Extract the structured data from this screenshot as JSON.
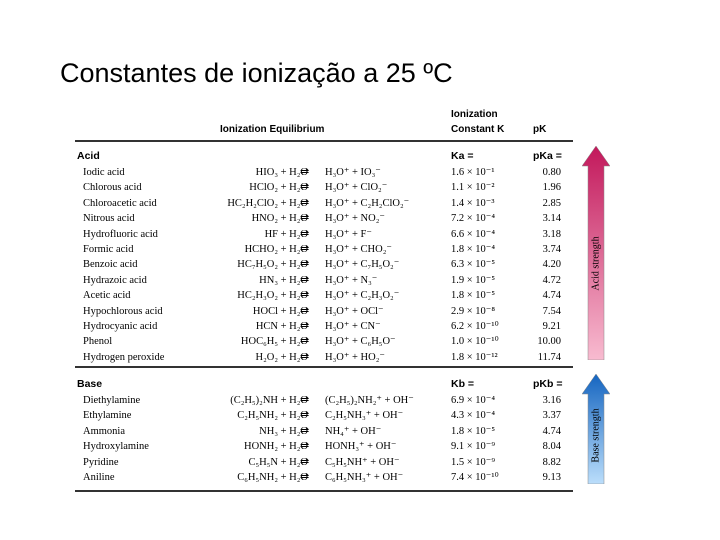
{
  "title": "Constantes de ionização a 25 ºC",
  "table": {
    "header": {
      "equilibrium": "Ionization Equilibrium",
      "constant_line1": "Ionization",
      "constant_line2": "Constant K",
      "pk": "pK"
    },
    "acid_section": {
      "label": "Acid",
      "k_label": "Ka =",
      "pk_label": "pKa =",
      "rows": [
        {
          "name": "Iodic acid",
          "reactants": "HIO₃ + H₂O",
          "products": "H₃O⁺ + IO₃⁻",
          "k": "1.6 × 10⁻¹",
          "pk": "0.80"
        },
        {
          "name": "Chlorous acid",
          "reactants": "HClO₂ + H₂O",
          "products": "H₃O⁺ + ClO₂⁻",
          "k": "1.1 × 10⁻²",
          "pk": "1.96"
        },
        {
          "name": "Chloroacetic acid",
          "reactants": "HC₂H₂ClO₂ + H₂O",
          "products": "H₃O⁺ + C₂H₂ClO₂⁻",
          "k": "1.4 × 10⁻³",
          "pk": "2.85"
        },
        {
          "name": "Nitrous acid",
          "reactants": "HNO₂ + H₂O",
          "products": "H₃O⁺ + NO₂⁻",
          "k": "7.2 × 10⁻⁴",
          "pk": "3.14"
        },
        {
          "name": "Hydrofluoric acid",
          "reactants": "HF + H₂O",
          "products": "H₃O⁺ + F⁻",
          "k": "6.6 × 10⁻⁴",
          "pk": "3.18"
        },
        {
          "name": "Formic acid",
          "reactants": "HCHO₂ + H₂O",
          "products": "H₃O⁺ + CHO₂⁻",
          "k": "1.8 × 10⁻⁴",
          "pk": "3.74"
        },
        {
          "name": "Benzoic acid",
          "reactants": "HC₇H₅O₂ + H₂O",
          "products": "H₃O⁺ + C₇H₅O₂⁻",
          "k": "6.3 × 10⁻⁵",
          "pk": "4.20"
        },
        {
          "name": "Hydrazoic acid",
          "reactants": "HN₃ + H₂O",
          "products": "H₃O⁺ + N₃⁻",
          "k": "1.9 × 10⁻⁵",
          "pk": "4.72"
        },
        {
          "name": "Acetic acid",
          "reactants": "HC₂H₃O₂ + H₂O",
          "products": "H₃O⁺ + C₂H₃O₂⁻",
          "k": "1.8 × 10⁻⁵",
          "pk": "4.74"
        },
        {
          "name": "Hypochlorous acid",
          "reactants": "HOCl + H₂O",
          "products": "H₃O⁺ + OCl⁻",
          "k": "2.9 × 10⁻⁸",
          "pk": "7.54"
        },
        {
          "name": "Hydrocyanic acid",
          "reactants": "HCN + H₂O",
          "products": "H₃O⁺ + CN⁻",
          "k": "6.2 × 10⁻¹⁰",
          "pk": "9.21"
        },
        {
          "name": "Phenol",
          "reactants": "HOC₆H₅ + H₂O",
          "products": "H₃O⁺ + C₆H₅O⁻",
          "k": "1.0 × 10⁻¹⁰",
          "pk": "10.00"
        },
        {
          "name": "Hydrogen peroxide",
          "reactants": "H₂O₂ + H₂O",
          "products": "H₃O⁺ + HO₂⁻",
          "k": "1.8 × 10⁻¹²",
          "pk": "11.74"
        }
      ]
    },
    "base_section": {
      "label": "Base",
      "k_label": "Kb =",
      "pk_label": "pKb =",
      "rows": [
        {
          "name": "Diethylamine",
          "reactants": "(C₂H₅)₂NH + H₂O",
          "products": "(C₂H₅)₂NH₂⁺ + OH⁻",
          "k": "6.9 × 10⁻⁴",
          "pk": "3.16"
        },
        {
          "name": "Ethylamine",
          "reactants": "C₂H₅NH₂ + H₂O",
          "products": "C₂H₅NH₃⁺ + OH⁻",
          "k": "4.3 × 10⁻⁴",
          "pk": "3.37"
        },
        {
          "name": "Ammonia",
          "reactants": "NH₃ + H₂O",
          "products": "NH₄⁺ + OH⁻",
          "k": "1.8 × 10⁻⁵",
          "pk": "4.74"
        },
        {
          "name": "Hydroxylamine",
          "reactants": "HONH₂ + H₂O",
          "products": "HONH₃⁺ + OH⁻",
          "k": "9.1 × 10⁻⁹",
          "pk": "8.04"
        },
        {
          "name": "Pyridine",
          "reactants": "C₅H₅N + H₂O",
          "products": "C₅H₅NH⁺ + OH⁻",
          "k": "1.5 × 10⁻⁹",
          "pk": "8.82"
        },
        {
          "name": "Aniline",
          "reactants": "C₆H₅NH₂ + H₂O",
          "products": "C₆H₅NH₃⁺ + OH⁻",
          "k": "7.4 × 10⁻¹⁰",
          "pk": "9.13"
        }
      ]
    },
    "equilibrium_arrow": "⇌",
    "acid_strength_label": "Acid strength",
    "base_strength_label": "Base strength",
    "acid_arrow_color": "#e0115f",
    "base_arrow_color": "#1e90ff"
  }
}
